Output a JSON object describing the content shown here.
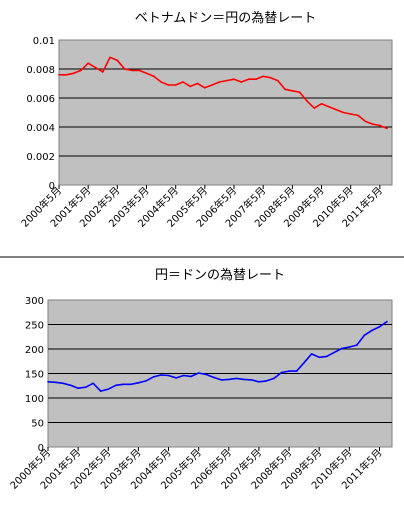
{
  "chart_data": [
    {
      "type": "line",
      "title": "ベトナムドン＝円の為替レート",
      "xlabel": "",
      "ylabel": "",
      "ylim": [
        0,
        0.01
      ],
      "yticks": [
        "0.01",
        "0.008",
        "0.006",
        "0.004",
        "0.002",
        "0"
      ],
      "xticks": [
        "2000年5月",
        "2001年5月",
        "2002年5月",
        "2003年5月",
        "2004年5月",
        "2005年5月",
        "2006年5月",
        "2007年5月",
        "2008年5月",
        "2009年5月",
        "2010年5月",
        "2011年5月"
      ],
      "grid": true,
      "legend": "none",
      "plot_background": "#c0c0c0",
      "series": [
        {
          "color": "#ff0000",
          "x": [
            "2000-05",
            "2000-08",
            "2000-11",
            "2001-02",
            "2001-05",
            "2001-08",
            "2001-11",
            "2002-02",
            "2002-05",
            "2002-08",
            "2002-11",
            "2003-02",
            "2003-05",
            "2003-08",
            "2003-11",
            "2004-02",
            "2004-05",
            "2004-08",
            "2004-11",
            "2005-02",
            "2005-05",
            "2005-08",
            "2005-11",
            "2006-02",
            "2006-05",
            "2006-08",
            "2006-11",
            "2007-02",
            "2007-05",
            "2007-08",
            "2007-11",
            "2008-02",
            "2008-05",
            "2008-08",
            "2008-11",
            "2009-02",
            "2009-05",
            "2009-08",
            "2009-11",
            "2010-02",
            "2010-05",
            "2010-08",
            "2010-11",
            "2011-02",
            "2011-05",
            "2011-08"
          ],
          "values": [
            0.0076,
            0.0076,
            0.0077,
            0.0079,
            0.0084,
            0.0081,
            0.0078,
            0.0088,
            0.0086,
            0.008,
            0.0079,
            0.0079,
            0.0077,
            0.0075,
            0.0071,
            0.0069,
            0.0069,
            0.0071,
            0.0068,
            0.007,
            0.0067,
            0.0069,
            0.0071,
            0.0072,
            0.0073,
            0.0071,
            0.0073,
            0.0073,
            0.0075,
            0.0074,
            0.0072,
            0.0066,
            0.0065,
            0.0064,
            0.0058,
            0.0053,
            0.0056,
            0.0054,
            0.0052,
            0.005,
            0.0049,
            0.0048,
            0.0044,
            0.0042,
            0.0041,
            0.0039
          ]
        }
      ]
    },
    {
      "type": "line",
      "title": "円＝ドンの為替レート",
      "xlabel": "",
      "ylabel": "",
      "ylim": [
        0,
        300
      ],
      "yticks": [
        "300",
        "250",
        "200",
        "150",
        "100",
        "50",
        "0"
      ],
      "xticks": [
        "2000年5月",
        "2001年5月",
        "2002年5月",
        "2003年5月",
        "2004年5月",
        "2005年5月",
        "2006年5月",
        "2007年5月",
        "2008年5月",
        "2009年5月",
        "2010年5月",
        "2011年5月"
      ],
      "grid": true,
      "legend": "none",
      "plot_background": "#c0c0c0",
      "series": [
        {
          "color": "#0000ff",
          "x": [
            "2000-05",
            "2000-08",
            "2000-11",
            "2001-02",
            "2001-05",
            "2001-08",
            "2001-11",
            "2002-02",
            "2002-05",
            "2002-08",
            "2002-11",
            "2003-02",
            "2003-05",
            "2003-08",
            "2003-11",
            "2004-02",
            "2004-05",
            "2004-08",
            "2004-11",
            "2005-02",
            "2005-05",
            "2005-08",
            "2005-11",
            "2006-02",
            "2006-05",
            "2006-08",
            "2006-11",
            "2007-02",
            "2007-05",
            "2007-08",
            "2007-11",
            "2008-02",
            "2008-05",
            "2008-08",
            "2008-11",
            "2009-02",
            "2009-05",
            "2009-08",
            "2009-11",
            "2010-02",
            "2010-05",
            "2010-08",
            "2010-11",
            "2011-02",
            "2011-05",
            "2011-08"
          ],
          "values": [
            133,
            132,
            130,
            126,
            120,
            122,
            130,
            114,
            118,
            126,
            128,
            128,
            131,
            135,
            143,
            147,
            146,
            141,
            146,
            144,
            151,
            148,
            142,
            137,
            138,
            140,
            138,
            137,
            133,
            135,
            140,
            152,
            155,
            155,
            172,
            190,
            183,
            185,
            193,
            201,
            204,
            208,
            228,
            238,
            245,
            256
          ]
        }
      ]
    }
  ]
}
